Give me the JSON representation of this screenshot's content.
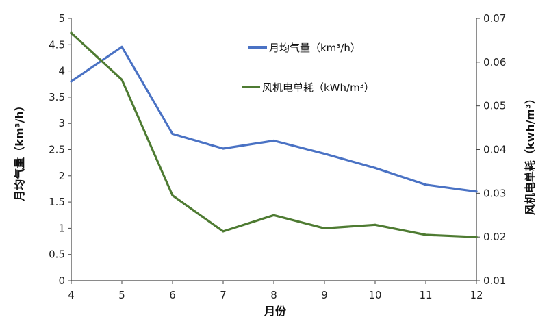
{
  "chart_data": {
    "type": "line",
    "x": [
      4,
      5,
      6,
      7,
      8,
      9,
      10,
      11,
      12
    ],
    "xlabel": "月份",
    "x_ticks": [
      "4",
      "5",
      "6",
      "7",
      "8",
      "9",
      "10",
      "11",
      "12"
    ],
    "xlim": [
      4,
      12
    ],
    "y_left": {
      "label": "月均气量（km³/h）",
      "lim": [
        0,
        5
      ],
      "ticks": [
        "0",
        "0.5",
        "1",
        "1.5",
        "2",
        "2.5",
        "3",
        "3.5",
        "4",
        "4.5",
        "5"
      ],
      "tick_values": [
        0,
        0.5,
        1,
        1.5,
        2,
        2.5,
        3,
        3.5,
        4,
        4.5,
        5
      ]
    },
    "y_right": {
      "label": "风机电单耗（kwh/m³）",
      "lim": [
        0.01,
        0.07
      ],
      "ticks": [
        "0.01",
        "0.02",
        "0.03",
        "0.04",
        "0.05",
        "0.06",
        "0.07"
      ],
      "tick_values": [
        0.01,
        0.02,
        0.03,
        0.04,
        0.05,
        0.06,
        0.07
      ]
    },
    "series": [
      {
        "name": "月均气量（km³/h）",
        "axis": "left",
        "color": "#4a72c4",
        "values": [
          3.8,
          4.46,
          2.8,
          2.52,
          2.67,
          2.42,
          2.15,
          1.83,
          1.7
        ]
      },
      {
        "name": "风机电单耗（kWh/m³）",
        "axis": "right",
        "color": "#4e7b32",
        "values": [
          0.0667,
          0.056,
          0.0295,
          0.0213,
          0.025,
          0.022,
          0.0228,
          0.0205,
          0.02
        ]
      }
    ],
    "legend_position": "top-center"
  }
}
